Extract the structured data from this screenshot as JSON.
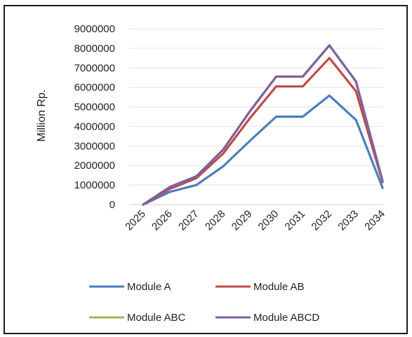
{
  "chart_data": {
    "type": "line",
    "title": "",
    "xlabel": "",
    "ylabel": "Million Rp.",
    "ylim": [
      0,
      9000000
    ],
    "yticks": [
      0,
      1000000,
      2000000,
      3000000,
      4000000,
      5000000,
      6000000,
      7000000,
      8000000,
      9000000
    ],
    "ytick_labels": [
      "0",
      "1000000",
      "2000000",
      "3000000",
      "4000000",
      "5000000",
      "6000000",
      "7000000",
      "8000000",
      "9000000"
    ],
    "categories": [
      "2025",
      "2026",
      "2027",
      "2028",
      "2029",
      "2030",
      "2031",
      "2032",
      "2033",
      "2034"
    ],
    "grid": "horizontal",
    "legend_position": "bottom",
    "series": [
      {
        "name": "Module A",
        "color": "#4a7ebb",
        "values": [
          0,
          650000,
          1000000,
          1950000,
          3250000,
          4500000,
          4500000,
          5580000,
          4330000,
          850000
        ]
      },
      {
        "name": "Module AB",
        "color": "#be4b48",
        "values": [
          0,
          800000,
          1350000,
          2600000,
          4400000,
          6050000,
          6050000,
          7500000,
          5800000,
          1150000
        ]
      },
      {
        "name": "Module ABC",
        "color": "#98b954",
        "values": [
          0,
          900000,
          1450000,
          2800000,
          4750000,
          6550000,
          6550000,
          8150000,
          6300000,
          1200000
        ]
      },
      {
        "name": "Module ABCD",
        "color": "#7d60a0",
        "values": [
          0,
          900000,
          1450000,
          2800000,
          4750000,
          6550000,
          6550000,
          8150000,
          6300000,
          1200000
        ]
      }
    ]
  }
}
